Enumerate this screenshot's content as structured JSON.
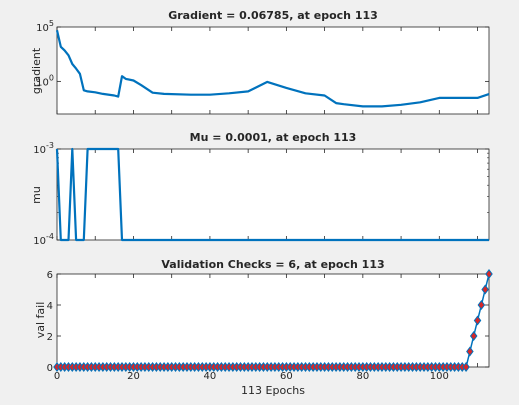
{
  "figure": {
    "background": "#f0f0f0",
    "line_color": "#0072bd",
    "marker_edge": "#0072bd",
    "marker_face": "#d62728"
  },
  "chart_data": [
    {
      "type": "line",
      "title": "Gradient = 0.06785, at epoch 113",
      "ylabel": "gradient",
      "xlabel": "",
      "yscale": "log",
      "xlim": [
        0,
        113
      ],
      "ylim": [
        0.001,
        100000
      ],
      "yticks": [
        1,
        100000
      ],
      "yticklabels": [
        {
          "base": "10",
          "exp": "0"
        },
        {
          "base": "10",
          "exp": "5"
        }
      ],
      "grid": false,
      "series": [
        {
          "x": [
            0,
            1,
            2,
            3,
            4,
            5,
            6,
            7,
            8,
            10,
            12,
            15,
            16,
            17,
            18,
            20,
            22,
            25,
            28,
            35,
            40,
            45,
            50,
            55,
            60,
            65,
            70,
            73,
            75,
            80,
            85,
            90,
            95,
            100,
            105,
            110,
            113
          ],
          "y": [
            50000,
            1500,
            700,
            250,
            40,
            15,
            5,
            0.15,
            0.12,
            0.1,
            0.07,
            0.05,
            0.04,
            3,
            1.7,
            1.2,
            0.45,
            0.09,
            0.07,
            0.06,
            0.06,
            0.08,
            0.12,
            0.9,
            0.25,
            0.08,
            0.05,
            0.01,
            0.008,
            0.005,
            0.005,
            0.007,
            0.012,
            0.03,
            0.03,
            0.03,
            0.068
          ]
        }
      ]
    },
    {
      "type": "line",
      "title": "Mu = 0.0001, at epoch 113",
      "ylabel": "mu",
      "xlabel": "",
      "yscale": "log",
      "xlim": [
        0,
        113
      ],
      "ylim": [
        0.0001,
        0.001
      ],
      "yticks": [
        0.0001,
        0.001
      ],
      "yticklabels": [
        {
          "base": "10",
          "exp": "-4"
        },
        {
          "base": "10",
          "exp": "-3"
        }
      ],
      "grid": false,
      "series": [
        {
          "x": [
            0,
            1,
            2,
            3,
            4,
            5,
            6,
            7,
            8,
            9,
            10,
            11,
            12,
            13,
            14,
            15,
            16,
            17,
            18,
            113
          ],
          "y": [
            0.001,
            0.0001,
            0.0001,
            0.0001,
            0.001,
            0.0001,
            0.0001,
            0.0001,
            0.001,
            0.001,
            0.001,
            0.001,
            0.001,
            0.001,
            0.001,
            0.001,
            0.001,
            0.0001,
            0.0001,
            0.0001
          ]
        }
      ]
    },
    {
      "type": "scatter",
      "title": "Validation Checks = 6, at epoch 113",
      "ylabel": "val fail",
      "xlabel": "113 Epochs",
      "yscale": "linear",
      "xlim": [
        0,
        113
      ],
      "ylim": [
        0,
        6
      ],
      "xticks": [
        0,
        20,
        40,
        60,
        80,
        100
      ],
      "yticks": [
        0,
        2,
        4,
        6
      ],
      "grid": false,
      "series": [
        {
          "marker": "diamond",
          "x_range": [
            0,
            113
          ],
          "nonzero": {
            "108": 1,
            "109": 2,
            "110": 3,
            "111": 4,
            "112": 5,
            "113": 6
          }
        }
      ]
    }
  ]
}
